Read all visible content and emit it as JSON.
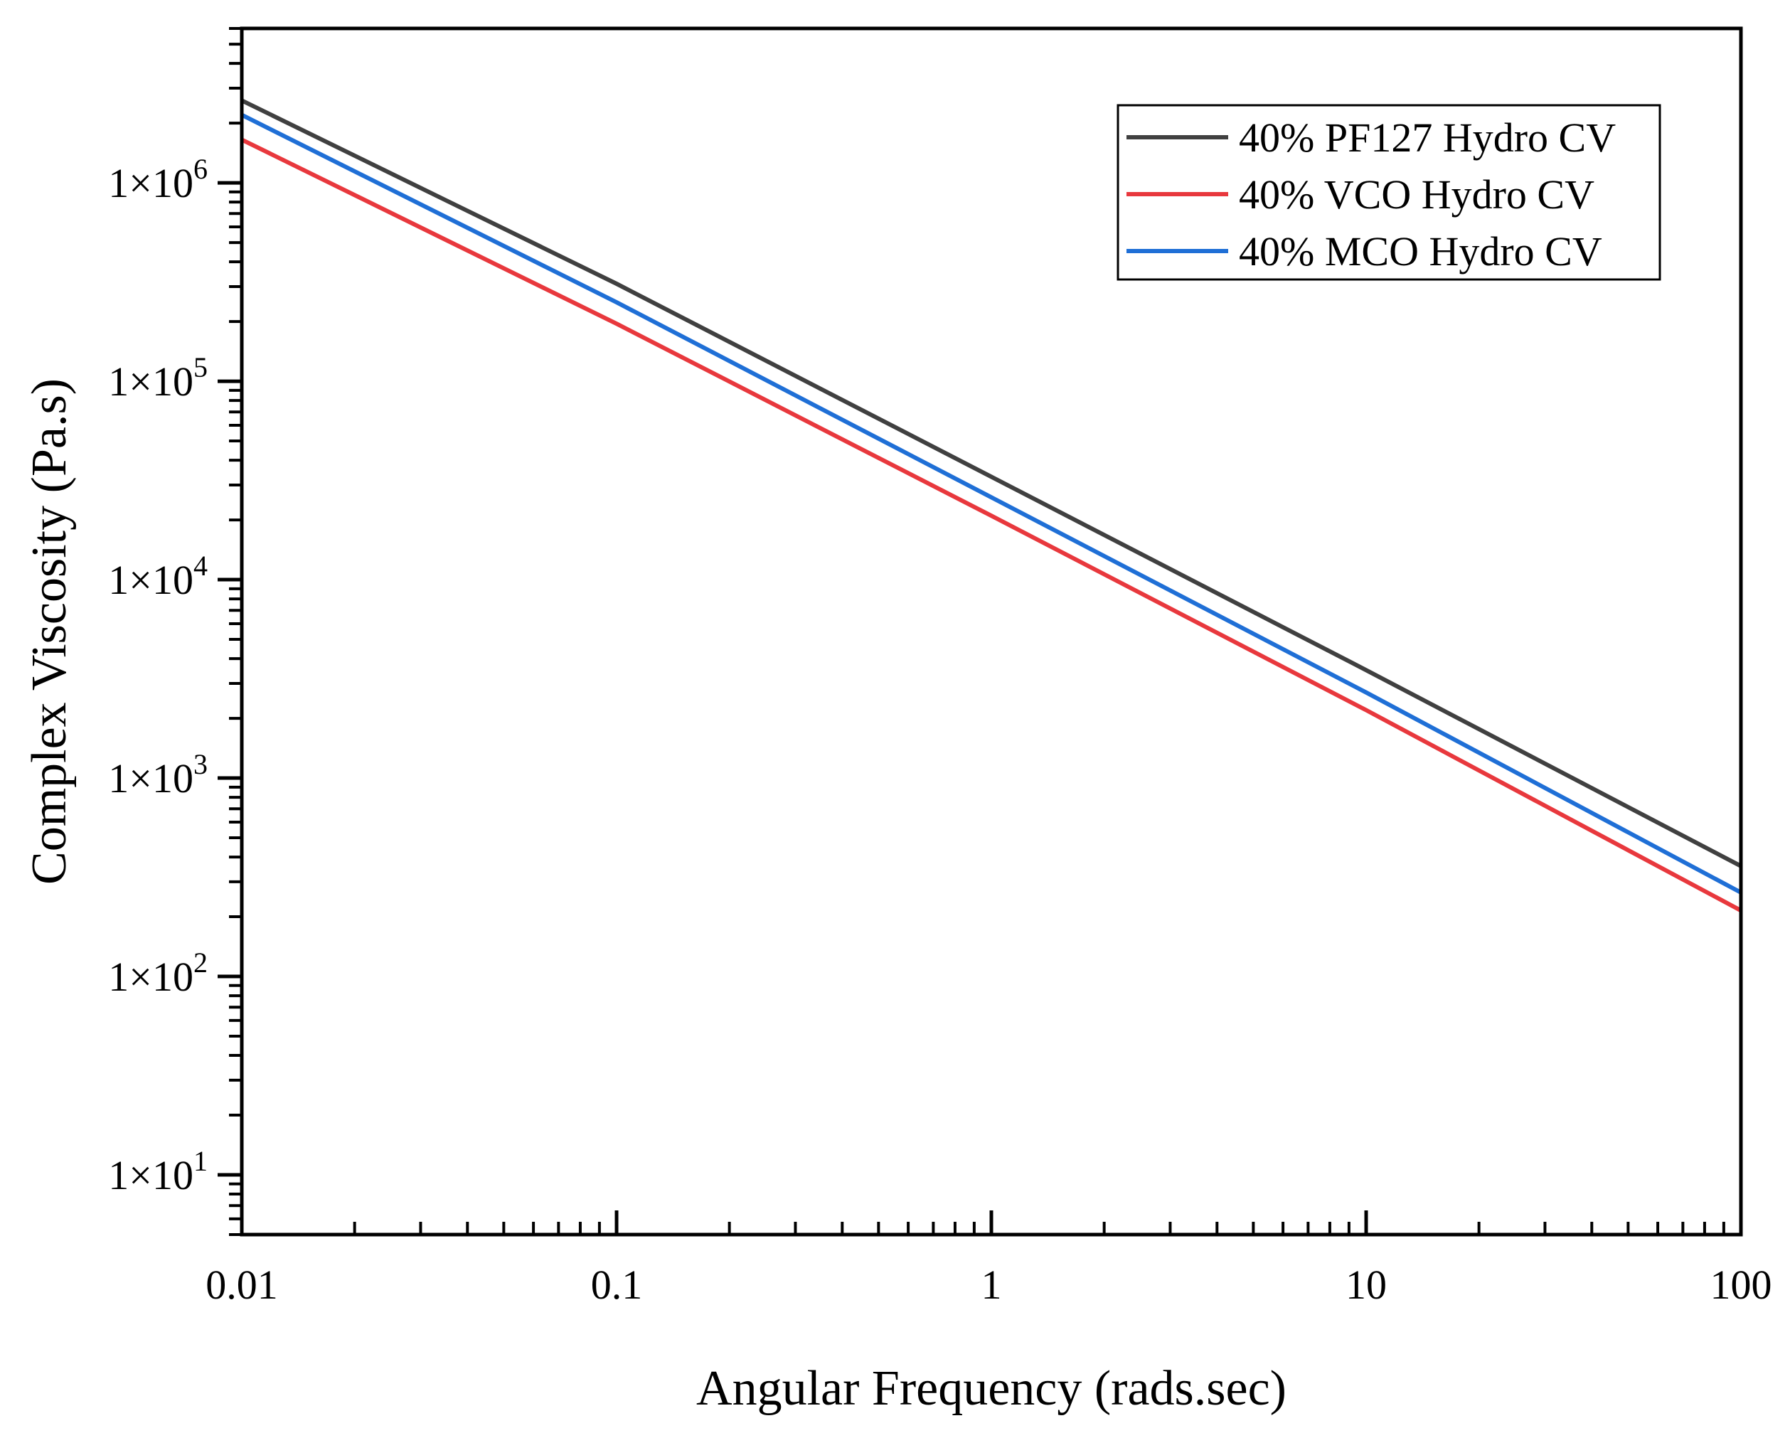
{
  "chart_data": {
    "type": "line",
    "title": "",
    "xlabel": "Angular Frequency (rads.sec)",
    "ylabel": "Complex Viscosity (Pa.s)",
    "xscale": "log",
    "yscale": "log",
    "xlim": [
      0.01,
      100
    ],
    "ylim": [
      5,
      6000000
    ],
    "x_ticks": [
      {
        "value": 0.01,
        "label": "0.01"
      },
      {
        "value": 0.1,
        "label": "0.1"
      },
      {
        "value": 1,
        "label": "1"
      },
      {
        "value": 10,
        "label": "10"
      },
      {
        "value": 100,
        "label": "100"
      }
    ],
    "y_ticks": [
      {
        "value": 10,
        "mantissa": "1×10",
        "exp": "1"
      },
      {
        "value": 100,
        "mantissa": "1×10",
        "exp": "2"
      },
      {
        "value": 1000,
        "mantissa": "1×10",
        "exp": "3"
      },
      {
        "value": 10000,
        "mantissa": "1×10",
        "exp": "4"
      },
      {
        "value": 100000,
        "mantissa": "1×10",
        "exp": "5"
      },
      {
        "value": 1000000,
        "mantissa": "1×10",
        "exp": "6"
      }
    ],
    "legend_position": "top-right",
    "series": [
      {
        "name": "40% PF127 Hydro CV",
        "color": "#404040",
        "x": [
          0.01,
          0.1,
          1,
          10,
          100
        ],
        "y": [
          2600000,
          310000,
          33000,
          3500,
          360
        ]
      },
      {
        "name": "40% VCO Hydro CV",
        "color": "#e8383d",
        "x": [
          0.01,
          0.1,
          1,
          10,
          100
        ],
        "y": [
          1650000,
          195000,
          21000,
          2200,
          215
        ]
      },
      {
        "name": "40% MCO Hydro CV",
        "color": "#1f6fd6",
        "x": [
          0.01,
          0.1,
          1,
          10,
          100
        ],
        "y": [
          2200000,
          250000,
          26000,
          2700,
          265
        ]
      }
    ]
  }
}
